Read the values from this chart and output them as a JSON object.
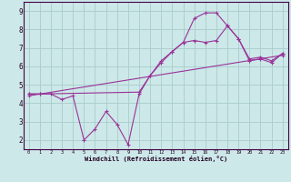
{
  "bg_color": "#cce8e8",
  "grid_color": "#aacccc",
  "line_color": "#993399",
  "xlabel": "Windchill (Refroidissement éolien,°C)",
  "ylabel_ticks": [
    2,
    3,
    4,
    5,
    6,
    7,
    8,
    9
  ],
  "xlim": [
    -0.5,
    23.5
  ],
  "ylim": [
    1.5,
    9.5
  ],
  "xticks": [
    0,
    1,
    2,
    3,
    4,
    5,
    6,
    7,
    8,
    9,
    10,
    11,
    12,
    13,
    14,
    15,
    16,
    17,
    18,
    19,
    20,
    21,
    22,
    23
  ],
  "line1_x": [
    0,
    1,
    2,
    3,
    4,
    5,
    6,
    7,
    8,
    9,
    10,
    11,
    12,
    13,
    14,
    15,
    16,
    17,
    18,
    19,
    20,
    21,
    22,
    23
  ],
  "line1_y": [
    4.5,
    4.5,
    4.5,
    4.2,
    4.4,
    2.0,
    2.6,
    3.55,
    2.85,
    1.75,
    4.5,
    5.5,
    6.2,
    6.8,
    7.3,
    7.4,
    7.3,
    7.4,
    8.2,
    7.5,
    6.3,
    6.4,
    6.2,
    6.7
  ],
  "line2_x": [
    0,
    1,
    10,
    11,
    12,
    13,
    14,
    15,
    16,
    17,
    18,
    19,
    20,
    21,
    22,
    23
  ],
  "line2_y": [
    4.5,
    4.5,
    4.6,
    5.5,
    6.3,
    6.8,
    7.3,
    8.6,
    8.9,
    8.9,
    8.2,
    7.5,
    6.4,
    6.5,
    6.3,
    6.7
  ],
  "line3_x": [
    0,
    23
  ],
  "line3_y": [
    4.4,
    6.6
  ]
}
